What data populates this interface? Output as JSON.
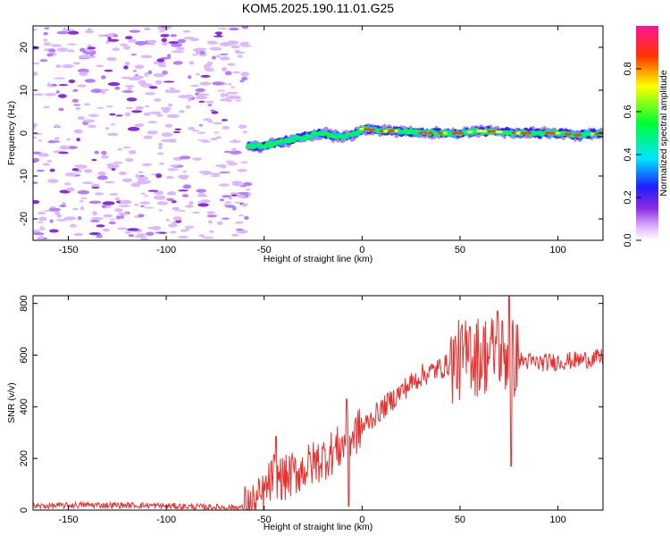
{
  "chart_data": [
    {
      "type": "heatmap",
      "title": "KOM5.2025.190.11.01.G25",
      "xlabel": "Height of straight line (km)",
      "ylabel": "Frequency (Hz)",
      "xlim": [
        -168,
        123
      ],
      "ylim": [
        -25,
        25
      ],
      "x_ticks": [
        -150,
        -100,
        -50,
        0,
        50,
        100
      ],
      "y_ticks": [
        -20,
        -10,
        0,
        10,
        20
      ],
      "colorbar": {
        "label": "Normalized spectral amplitude",
        "ticks": [
          0.0,
          0.2,
          0.4,
          0.6,
          0.8
        ],
        "range": [
          0,
          1
        ]
      },
      "trace": {
        "description_points_x": [
          -58,
          -50,
          -40,
          -30,
          -20,
          -10,
          -3,
          0,
          10,
          20,
          30,
          40,
          50,
          60,
          70,
          80,
          90,
          100,
          110,
          123
        ],
        "description_points_freq": [
          -3,
          -3,
          -2,
          -1,
          0,
          -1,
          0,
          1,
          0.5,
          0.5,
          0,
          0,
          0,
          0.5,
          0.3,
          0,
          0,
          0,
          -0.5,
          0
        ]
      },
      "noise_region_end_x": -58
    },
    {
      "type": "line",
      "xlabel": "Height of straight line (km)",
      "ylabel": "SNR (v/v)",
      "xlim": [
        -168,
        123
      ],
      "ylim": [
        0,
        830
      ],
      "x_ticks": [
        -150,
        -100,
        -50,
        0,
        50,
        100
      ],
      "y_ticks": [
        0,
        200,
        400,
        600,
        800
      ],
      "line_color": "#e8302e",
      "trend": {
        "x": [
          -168,
          -140,
          -110,
          -80,
          -60,
          -55,
          -50,
          -45,
          -40,
          -30,
          -20,
          -10,
          0,
          10,
          20,
          30,
          40,
          50,
          60,
          70,
          80,
          90,
          100,
          110,
          123
        ],
        "y": [
          15,
          20,
          18,
          12,
          10,
          20,
          60,
          140,
          120,
          160,
          200,
          250,
          320,
          390,
          460,
          520,
          550,
          580,
          600,
          610,
          580,
          570,
          575,
          580,
          590
        ]
      },
      "spikes": [
        {
          "x": -44,
          "y": 285
        },
        {
          "x": -8,
          "y": 430
        },
        {
          "x": -7,
          "y": 15
        },
        {
          "x": 55,
          "y": 710
        },
        {
          "x": 69,
          "y": 770
        },
        {
          "x": 75,
          "y": 830
        },
        {
          "x": 76,
          "y": 170
        }
      ]
    }
  ]
}
